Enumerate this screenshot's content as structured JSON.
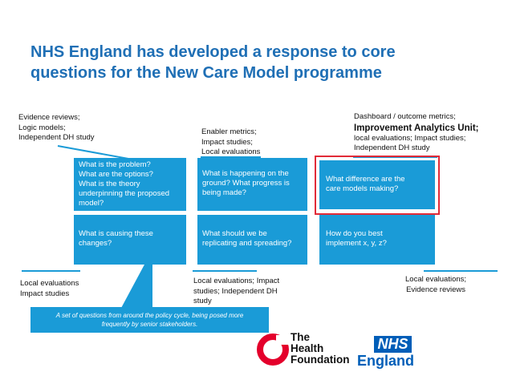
{
  "title_line1": "NHS England has developed a response to core",
  "title_line2": "questions for the New Care Model programme",
  "labels": {
    "top_left": [
      "Evidence reviews;",
      "Logic models;",
      "Independent DH study"
    ],
    "top_mid": [
      "Enabler metrics;",
      "Impact studies;",
      "Local evaluations"
    ],
    "top_right_1": "Dashboard / outcome metrics;",
    "top_right_2_bold": "Improvement Analytics Unit",
    "top_right_2_tail": ";",
    "top_right_3": "local evaluations; Impact studies;",
    "top_right_4": "Independent DH study",
    "bottom_left": [
      "Local evaluations",
      "Impact studies"
    ],
    "bottom_mid": [
      "Local evaluations; Impact",
      "studies; Independent DH",
      "study"
    ],
    "bottom_right": [
      "Local evaluations;",
      "Evidence reviews"
    ]
  },
  "boxes": {
    "top_left": [
      "What is the problem?",
      "What are the options?",
      "What is the theory",
      "underpinning the proposed",
      "model?"
    ],
    "top_mid": [
      "What is happening on the",
      "ground? What progress is",
      "being made?"
    ],
    "top_right": [
      "What difference are the",
      "care models making?"
    ],
    "bottom_left": [
      "What is causing these",
      "changes?"
    ],
    "bottom_mid": [
      "What should we be",
      "replicating and spreading?"
    ],
    "bottom_right": [
      "How do you best",
      "implement x, y, z?"
    ]
  },
  "callout": [
    "A set of questions from around the policy cycle, being posed more",
    "frequently by senior stakeholders."
  ],
  "logos": {
    "health_foundation": [
      "The",
      "Health",
      "Foundation"
    ],
    "nhs": "NHS",
    "england": "England"
  },
  "colors": {
    "title": "#1f6fb5",
    "box": "#1a9bd7",
    "highlight": "#e12b38",
    "nhs_blue": "#005eb8",
    "health_foundation_red": "#e4002b"
  }
}
